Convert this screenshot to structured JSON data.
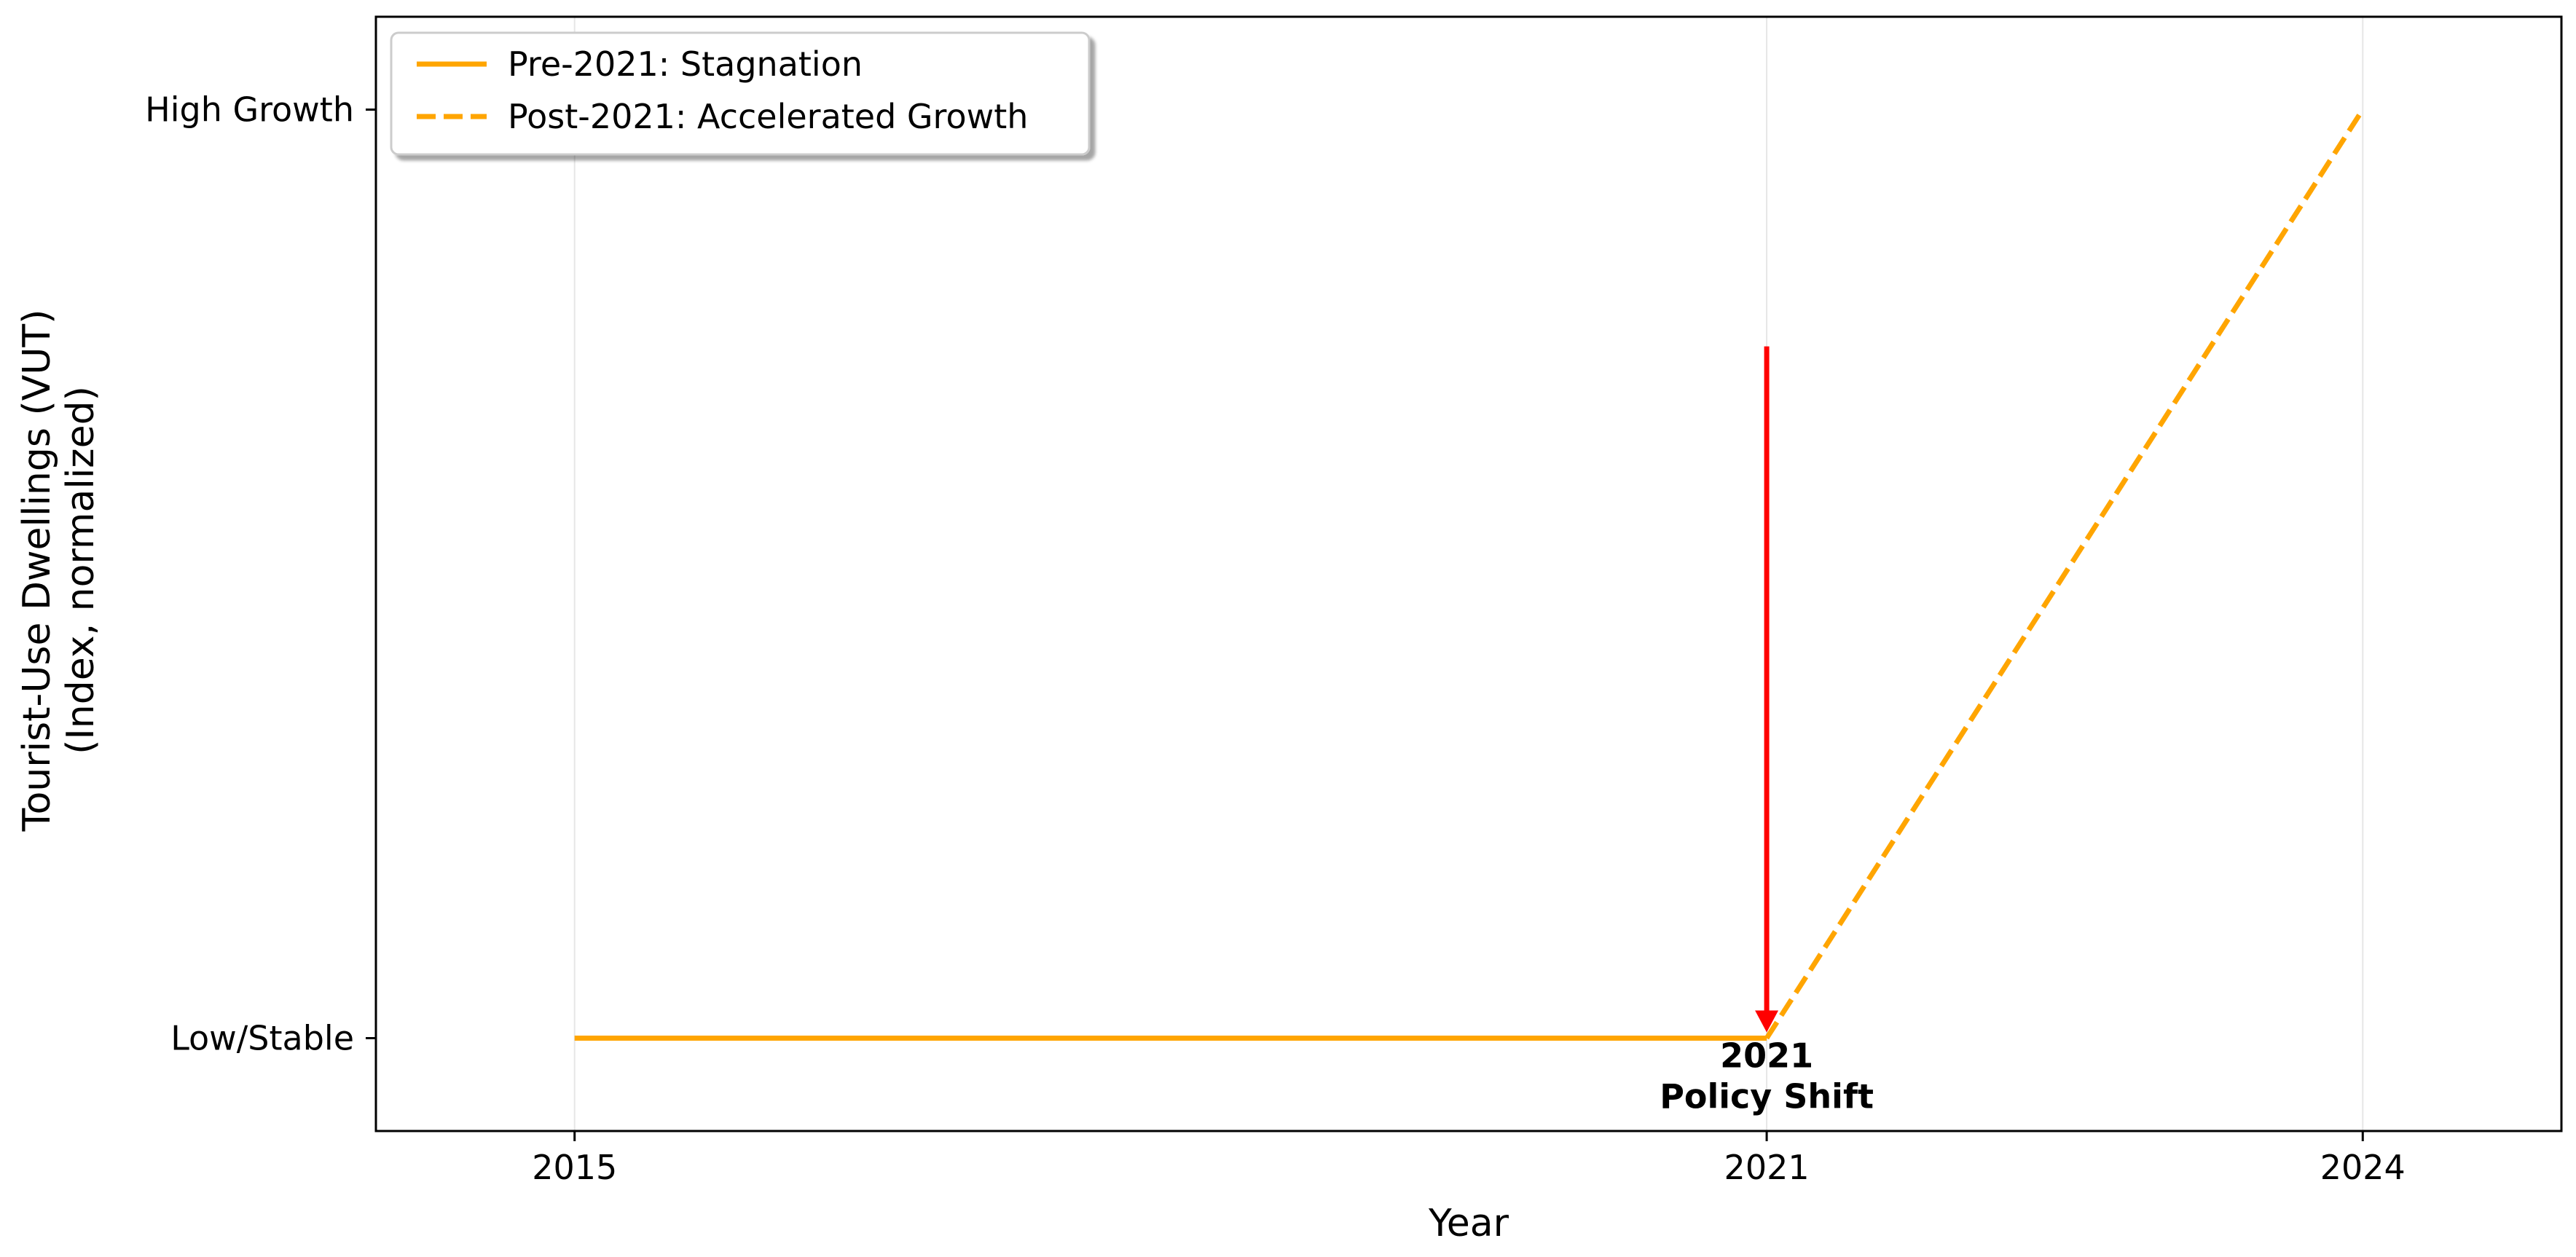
{
  "chart_data": {
    "type": "line",
    "xlabel": "Year",
    "ylabel_lines": [
      "Tourist-Use Dwellings (VUT)",
      "(Index, normalized)"
    ],
    "x_ticks": [
      2015,
      2021,
      2024
    ],
    "x_tick_labels": [
      "2015",
      "2021",
      "2024"
    ],
    "xlim": [
      2014.0,
      2025.0
    ],
    "y_ticks": [
      0,
      1
    ],
    "y_tick_labels": [
      "Low/Stable",
      "High Growth"
    ],
    "ylim": [
      -0.1,
      1.1
    ],
    "grid": "vertical",
    "legend_placement": "top-left",
    "series": [
      {
        "name": "Pre-2021: Stagnation",
        "style": "solid",
        "color": "#FFA500",
        "points": [
          [
            2015,
            0
          ],
          [
            2021,
            0
          ]
        ]
      },
      {
        "name": "Post-2021: Accelerated Growth",
        "style": "dashed",
        "color": "#FFA500",
        "points": [
          [
            2021,
            0
          ],
          [
            2024,
            1
          ]
        ]
      }
    ],
    "annotation": {
      "lines": [
        "2021",
        "Policy Shift"
      ],
      "x": 2021,
      "y": 0,
      "arrow_from_y": 0.745,
      "arrow_color": "#FF0000"
    }
  }
}
